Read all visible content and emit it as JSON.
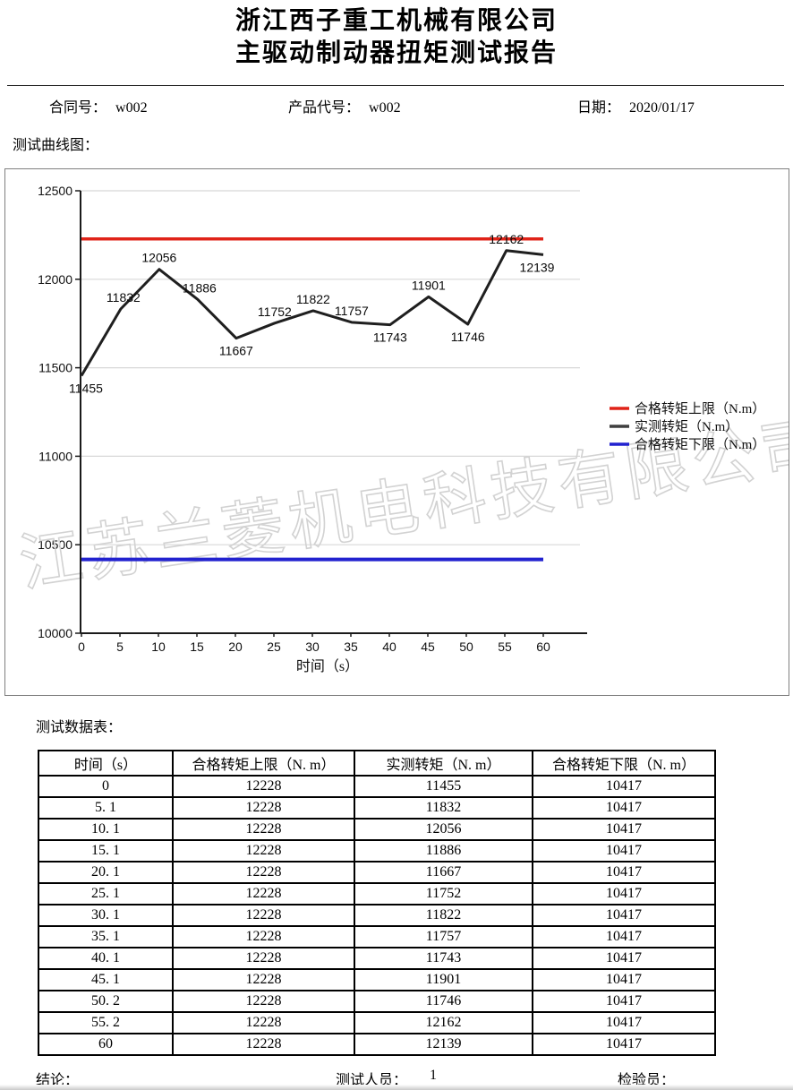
{
  "header": {
    "company": "浙江西子重工机械有限公司",
    "report_title": "主驱动制动器扭矩测试报告",
    "contract_label": "合同号：",
    "contract_value": "w002",
    "product_label": "产品代号：",
    "product_value": "w002",
    "date_label": "日期：",
    "date_value": "2020/01/17"
  },
  "sections": {
    "curve_label": "测试曲线图：",
    "table_label": "测试数据表："
  },
  "chart_data": {
    "type": "line",
    "xlabel": "时间（s）",
    "x": [
      0,
      5.1,
      10.1,
      15.1,
      20.1,
      25.1,
      30.1,
      35.1,
      40.1,
      45.1,
      50.2,
      55.2,
      60
    ],
    "series": [
      {
        "name": "合格转矩上限（N.m）",
        "color": "#e02318",
        "values": [
          12228,
          12228,
          12228,
          12228,
          12228,
          12228,
          12228,
          12228,
          12228,
          12228,
          12228,
          12228,
          12228
        ]
      },
      {
        "name": "实测转矩（N.m）",
        "color": "#1f1f1f",
        "values": [
          11455,
          11832,
          12056,
          11886,
          11667,
          11752,
          11822,
          11757,
          11743,
          11901,
          11746,
          12162,
          12139
        ]
      },
      {
        "name": "合格转矩下限（N.m）",
        "color": "#2222cf",
        "values": [
          10417,
          10417,
          10417,
          10417,
          10417,
          10417,
          10417,
          10417,
          10417,
          10417,
          10417,
          10417,
          10417
        ]
      }
    ],
    "ylim": [
      10000,
      12500
    ],
    "yticks": [
      10000,
      10500,
      11000,
      11500,
      12000,
      12500
    ],
    "xticks": [
      0,
      5,
      10,
      15,
      20,
      25,
      30,
      35,
      40,
      45,
      50,
      55,
      60
    ],
    "grid": "horizontal",
    "legend_position": "right-middle",
    "watermark": "江苏兰菱机电科技有限公司",
    "point_label_pos": [
      "below",
      "above",
      "above",
      "above",
      "below",
      "above",
      "above",
      "above",
      "below",
      "above",
      "below",
      "above",
      "below"
    ],
    "point_label_dx": [
      5,
      3,
      0,
      2,
      0,
      0,
      0,
      0,
      0,
      0,
      0,
      0,
      -7
    ],
    "colors": {
      "grid": "#d8d8d8",
      "axis": "#1a1a1a",
      "watermark": "#d2d2d2"
    }
  },
  "table": {
    "columns": [
      "时间（s）",
      "合格转矩上限（N. m）",
      "实测转矩（N. m）",
      "合格转矩下限（N. m）"
    ],
    "rows": [
      [
        "0",
        "12228",
        "11455",
        "10417"
      ],
      [
        "5. 1",
        "12228",
        "11832",
        "10417"
      ],
      [
        "10. 1",
        "12228",
        "12056",
        "10417"
      ],
      [
        "15. 1",
        "12228",
        "11886",
        "10417"
      ],
      [
        "20. 1",
        "12228",
        "11667",
        "10417"
      ],
      [
        "25. 1",
        "12228",
        "11752",
        "10417"
      ],
      [
        "30. 1",
        "12228",
        "11822",
        "10417"
      ],
      [
        "35. 1",
        "12228",
        "11757",
        "10417"
      ],
      [
        "40. 1",
        "12228",
        "11743",
        "10417"
      ],
      [
        "45. 1",
        "12228",
        "11901",
        "10417"
      ],
      [
        "50. 2",
        "12228",
        "11746",
        "10417"
      ],
      [
        "55. 2",
        "12228",
        "12162",
        "10417"
      ],
      [
        "60",
        "12228",
        "12139",
        "10417"
      ]
    ]
  },
  "footer": {
    "conclusion_label": "结论：",
    "tester_label": "测试人员：",
    "tester_value": "1",
    "inspector_label": "检验员："
  }
}
